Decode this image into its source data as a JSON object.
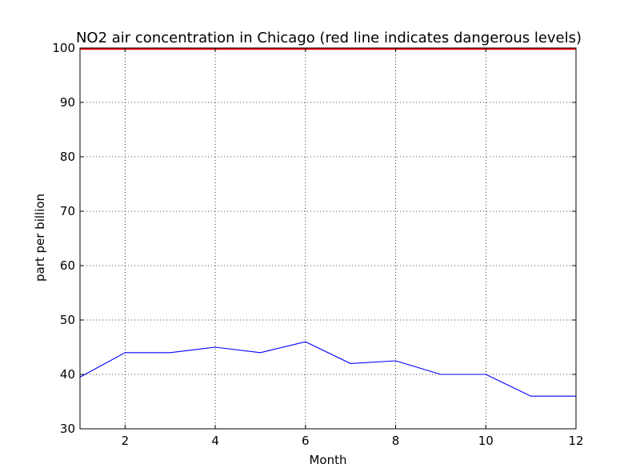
{
  "chart_data": {
    "type": "line",
    "title": "NO2 air concentration in Chicago (red line indicates dangerous levels)",
    "xlabel": "Month",
    "ylabel": "part per billion",
    "xlim": [
      1,
      12
    ],
    "ylim": [
      30,
      100
    ],
    "x_ticks": [
      2,
      4,
      6,
      8,
      10,
      12
    ],
    "y_ticks": [
      30,
      40,
      50,
      60,
      70,
      80,
      90,
      100
    ],
    "grid": true,
    "series": [
      {
        "color": "#0000ff",
        "x": [
          1,
          2,
          3,
          4,
          5,
          6,
          7,
          8,
          9,
          10,
          11,
          12
        ],
        "values": [
          39.5,
          44,
          44,
          45,
          44,
          46,
          42,
          42.5,
          40,
          40,
          36,
          36
        ]
      }
    ],
    "reference_lines": [
      {
        "y": 100,
        "color": "#ff0000",
        "meaning": "dangerous level"
      }
    ]
  }
}
